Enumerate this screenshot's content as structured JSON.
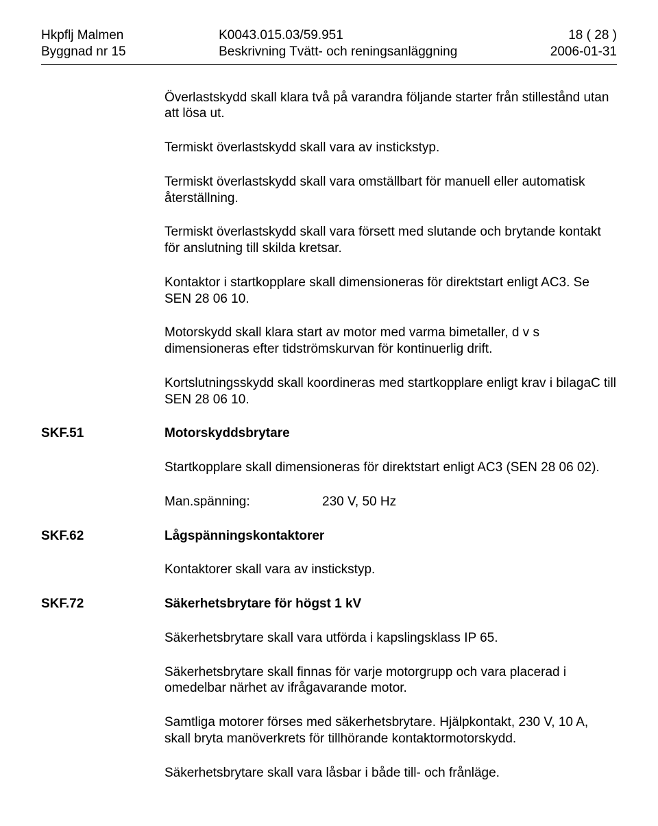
{
  "header": {
    "left_line1": "Hkpflj Malmen",
    "left_line2": "Byggnad nr 15",
    "center_line1": "K0043.015.03/59.951",
    "center_line2": "Beskrivning Tvätt- och reningsanläggning",
    "right_line1": "18 ( 28 )",
    "right_line2": "2006-01-31"
  },
  "paragraphs": {
    "p1": "Överlastskydd skall klara två på varandra följande starter från stillestånd utan att lösa ut.",
    "p2": "Termiskt överlastskydd skall vara av instickstyp.",
    "p3": "Termiskt överlastskydd skall vara omställbart för manuell eller automatisk återställning.",
    "p4": "Termiskt överlastskydd skall vara försett med slutande och brytande kontakt för anslutning till skilda kretsar.",
    "p5": "Kontaktor i startkopplare skall dimensioneras för direktstart enligt AC3. Se SEN 28 06 10.",
    "p6": "Motorskydd skall klara start av motor med varma bimetaller, d v s dimensioneras efter tidströmskurvan för kontinuerlig drift.",
    "p7": "Kortslutningsskydd skall koordineras med startkopplare enligt krav i bilagaC till SEN 28 06 10."
  },
  "sections": {
    "s1": {
      "code": "SKF.51",
      "title": "Motorskyddsbrytare",
      "p1": "Startkopplare skall dimensioneras för direktstart enligt AC3 (SEN 28 06 02).",
      "kv_label": "Man.spänning:",
      "kv_value": "230 V, 50 Hz"
    },
    "s2": {
      "code": "SKF.62",
      "title": "Lågspänningskontaktorer",
      "p1": "Kontaktorer skall vara av instickstyp."
    },
    "s3": {
      "code": "SKF.72",
      "title": "Säkerhetsbrytare för högst 1 kV",
      "p1": "Säkerhetsbrytare skall vara utförda i kapslingsklass IP 65.",
      "p2": "Säkerhetsbrytare skall finnas för varje motorgrupp och vara placerad i omedelbar närhet av ifrågavarande motor.",
      "p3": "Samtliga motorer förses med säkerhetsbrytare. Hjälpkontakt, 230 V, 10 A, skall bryta manöverkrets för tillhörande kontaktormotorskydd.",
      "p4": "Säkerhetsbrytare skall vara låsbar i både till- och frånläge."
    }
  }
}
